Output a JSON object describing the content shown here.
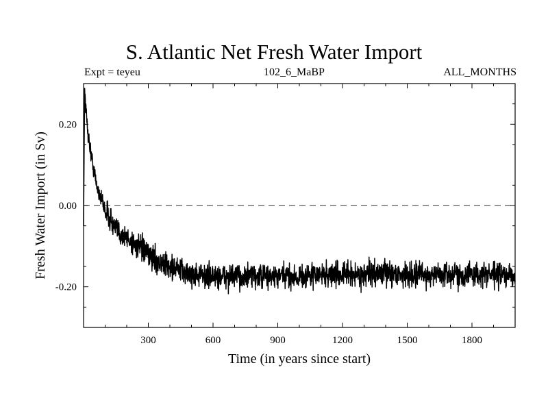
{
  "header": {
    "title": "S. Atlantic Net Fresh Water Import",
    "left_label": "Expt = teyeu",
    "center_label": "102_6_MaBP",
    "right_label": "ALL_MONTHS"
  },
  "chart_data": {
    "type": "line",
    "title": "S. Atlantic Net Fresh Water Import",
    "xlabel": "Time (in years since start)",
    "ylabel": "Fresh Water Import (in Sv)",
    "xlim": [
      0,
      2000
    ],
    "ylim": [
      -0.3,
      0.3
    ],
    "xticks": [
      300,
      600,
      900,
      1200,
      1500,
      1800
    ],
    "xtick_labels": [
      "300",
      "600",
      "900",
      "1200",
      "1500",
      "1800"
    ],
    "yticks": [
      0.2,
      0.0,
      -0.2
    ],
    "ytick_labels": [
      "0.20",
      "0.00",
      "-0.20"
    ],
    "reference_line": {
      "y": 0.0,
      "style": "dashed"
    },
    "series": [
      {
        "name": "teyeu",
        "x": [
          0,
          5,
          10,
          20,
          30,
          40,
          50,
          60,
          80,
          100,
          120,
          150,
          200,
          250,
          300,
          350,
          400,
          450,
          500,
          600,
          700,
          800,
          900,
          1000,
          1100,
          1200,
          1300,
          1400,
          1500,
          1600,
          1700,
          1800,
          1900,
          2000
        ],
        "values": [
          -0.05,
          0.29,
          0.24,
          0.18,
          0.14,
          0.11,
          0.08,
          0.05,
          0.02,
          -0.01,
          -0.03,
          -0.06,
          -0.08,
          -0.1,
          -0.12,
          -0.14,
          -0.15,
          -0.16,
          -0.17,
          -0.175,
          -0.175,
          -0.175,
          -0.175,
          -0.175,
          -0.17,
          -0.17,
          -0.17,
          -0.165,
          -0.17,
          -0.17,
          -0.17,
          -0.17,
          -0.17,
          -0.175
        ],
        "noise_amplitude_sv": 0.03
      }
    ]
  }
}
